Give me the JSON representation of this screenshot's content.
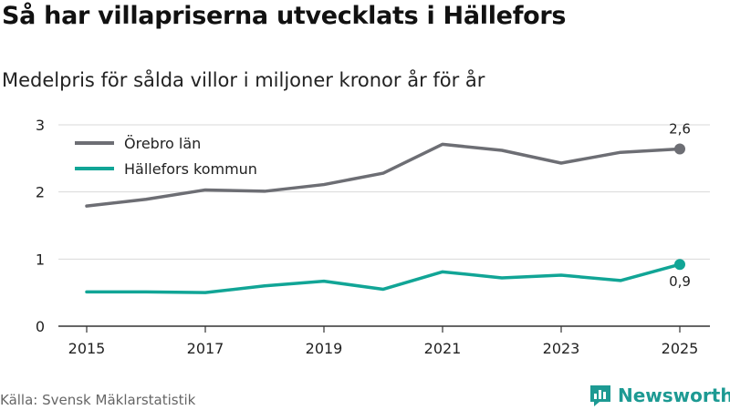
{
  "title": "Så har villapriserna utvecklats i Hällefors",
  "subtitle": "Medelpris för sålda villor i miljoner kronor år för år",
  "source": "Källa: Svensk Mäklarstatistik",
  "brand": {
    "name": "Newsworthy",
    "color": "#1d9a93"
  },
  "chart_data": {
    "type": "line",
    "title": "Så har villapriserna utvecklats i Hällefors",
    "subtitle": "Medelpris för sålda villor i miljoner kronor år för år",
    "xlabel": "",
    "ylabel": "",
    "x": [
      2015,
      2016,
      2017,
      2018,
      2019,
      2020,
      2021,
      2022,
      2023,
      2024,
      2025
    ],
    "x_ticks": [
      "2015",
      "2017",
      "2019",
      "2021",
      "2023",
      "2025"
    ],
    "y_ticks": [
      "0",
      "1",
      "2",
      "3"
    ],
    "ylim": [
      0,
      3
    ],
    "xlim": [
      2015,
      2025
    ],
    "grid": true,
    "legend_position": "top-left",
    "series": [
      {
        "name": "Örebro län",
        "color": "#6d6e74",
        "values": [
          1.79,
          1.89,
          2.03,
          2.01,
          2.11,
          2.28,
          2.71,
          2.62,
          2.43,
          2.59,
          2.64
        ],
        "end_label": "2,6"
      },
      {
        "name": "Hällefors kommun",
        "color": "#11a596",
        "values": [
          0.51,
          0.51,
          0.5,
          0.6,
          0.67,
          0.55,
          0.81,
          0.72,
          0.76,
          0.68,
          0.92
        ],
        "end_label": "0,9"
      }
    ]
  }
}
